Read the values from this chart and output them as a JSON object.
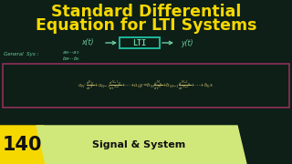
{
  "bg_color": "#0d1f17",
  "title_line1": "Standard Differential",
  "title_line2": "Equation for LTI Systems",
  "title_color": "#f5d800",
  "title_fontsize": 12.5,
  "block": {
    "x_input": "x(t)",
    "block_label": "LTI",
    "y_output": "y(t)",
    "box_color": "#1eb89a",
    "text_color": "#6dcca0",
    "arrow_color": "#6dcca0"
  },
  "gen_label": "General System:",
  "gen_color": "#6dcca0",
  "gen_fontsize": 4.0,
  "eq_color": "#c8b86a",
  "eq_box_color": "#9a3060",
  "eq_fontsize": 4.0,
  "badge_bg": "#f5d800",
  "badge_text": "140",
  "badge_text_color": "#111111",
  "badge_fontsize": 15,
  "signal_bg": "#d0e87a",
  "signal_text": "Signal & System",
  "signal_text_color": "#111111",
  "signal_fontsize": 8
}
